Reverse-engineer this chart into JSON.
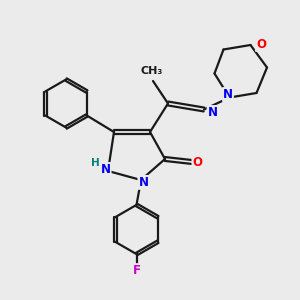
{
  "bg_color": "#ebebeb",
  "fig_size": [
    3.0,
    3.0
  ],
  "dpi": 100,
  "bond_color": "#1a1a1a",
  "bond_width": 1.6,
  "atom_colors": {
    "N": "#0000ee",
    "O": "#ff0000",
    "F": "#cc00cc",
    "H_label": "#008080",
    "C": "#1a1a1a"
  },
  "font_size_atom": 8.5,
  "font_size_small": 7.0
}
